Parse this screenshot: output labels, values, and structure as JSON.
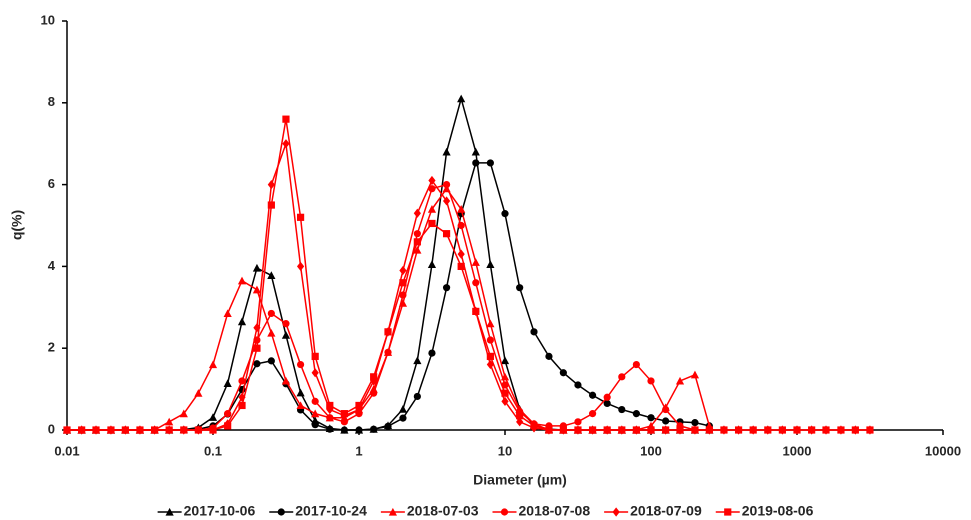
{
  "chart_data": {
    "type": "line",
    "x_label": "Diameter (µm)",
    "y_label": "q(%)",
    "x_scale": "log",
    "xlim": [
      0.01,
      10000
    ],
    "xticks": [
      0.01,
      0.1,
      1,
      10,
      100,
      1000,
      10000
    ],
    "ylim": [
      0,
      10
    ],
    "yticks": [
      0,
      2,
      4,
      6,
      8,
      10
    ],
    "grid": false,
    "legend": "bottom",
    "x": [
      0.01,
      0.0126,
      0.0158,
      0.02,
      0.0251,
      0.0316,
      0.0398,
      0.0501,
      0.0631,
      0.0794,
      0.1,
      0.126,
      0.158,
      0.2,
      0.251,
      0.316,
      0.398,
      0.501,
      0.631,
      0.794,
      1,
      1.26,
      1.58,
      2,
      2.51,
      3.16,
      3.98,
      5.01,
      6.31,
      7.94,
      10,
      12.6,
      15.8,
      20,
      25.1,
      31.6,
      39.8,
      50.1,
      63.1,
      79.4,
      100,
      126,
      158,
      200,
      251,
      316,
      398,
      501,
      631,
      794,
      1000,
      1260,
      1580,
      2000,
      2510,
      3160
    ],
    "series": [
      {
        "name": "2017-10-06",
        "color": "#000000",
        "marker": "triangle",
        "values": [
          0,
          0,
          0,
          0,
          0,
          0,
          0,
          0,
          0.01,
          0.06,
          0.31,
          1.14,
          2.65,
          3.96,
          3.78,
          2.32,
          0.91,
          0.23,
          0.04,
          0,
          0,
          0.02,
          0.11,
          0.51,
          1.7,
          4.05,
          6.8,
          8.1,
          6.8,
          4.05,
          1.7,
          0.51,
          0.11,
          0.02,
          0,
          0,
          0,
          0,
          0,
          0,
          0,
          0,
          0,
          0,
          0,
          null,
          null,
          null,
          null,
          null,
          null,
          null,
          null,
          null,
          null,
          null
        ]
      },
      {
        "name": "2017-10-24",
        "color": "#000000",
        "marker": "circle",
        "values": [
          0,
          0,
          0,
          0,
          0,
          0,
          0,
          0,
          0,
          0.02,
          0.1,
          0.39,
          0.99,
          1.62,
          1.69,
          1.13,
          0.49,
          0.13,
          0.02,
          0,
          0,
          0.02,
          0.09,
          0.29,
          0.82,
          1.88,
          3.48,
          5.29,
          6.53,
          6.53,
          5.29,
          3.48,
          2.4,
          1.8,
          1.4,
          1.1,
          0.85,
          0.65,
          0.5,
          0.4,
          0.3,
          0.22,
          0.2,
          0.18,
          0.1,
          null,
          null,
          null,
          null,
          null,
          null,
          null,
          null,
          null,
          null,
          null
        ]
      },
      {
        "name": "2018-07-03",
        "color": "#ff0000",
        "marker": "triangle",
        "values": [
          0,
          0,
          0,
          0,
          0,
          0,
          0,
          0.2,
          0.4,
          0.9,
          1.6,
          2.85,
          3.65,
          3.43,
          2.37,
          1.2,
          0.6,
          0.4,
          0.3,
          0.3,
          0.5,
          1.0,
          1.9,
          3.1,
          4.4,
          5.4,
          5.9,
          5.4,
          4.1,
          2.6,
          1.3,
          0.5,
          0.15,
          0,
          0,
          0,
          0,
          0,
          0,
          0,
          0.1,
          0.55,
          1.2,
          1.35,
          0.1,
          null,
          null,
          null,
          null,
          null,
          null,
          null,
          null,
          null,
          null,
          null
        ]
      },
      {
        "name": "2018-07-08",
        "color": "#ff0000",
        "marker": "circle",
        "values": [
          0,
          0,
          0,
          0,
          0,
          0,
          0,
          0,
          0,
          0,
          0.05,
          0.4,
          1.2,
          2.2,
          2.85,
          2.6,
          1.6,
          0.7,
          0.3,
          0.2,
          0.4,
          0.9,
          1.9,
          3.3,
          4.8,
          5.9,
          6.0,
          5.0,
          3.6,
          2.2,
          1.1,
          0.45,
          0.15,
          0.1,
          0.1,
          0.2,
          0.4,
          0.8,
          1.3,
          1.6,
          1.2,
          0.5,
          0.1,
          0,
          0,
          null,
          null,
          null,
          null,
          null,
          null,
          null,
          null,
          null,
          null,
          null
        ]
      },
      {
        "name": "2018-07-09",
        "color": "#ff0000",
        "marker": "diamond",
        "values": [
          0,
          0,
          0,
          0,
          0,
          0,
          0,
          0,
          0,
          0,
          0,
          0.15,
          0.8,
          2.5,
          6.0,
          7.0,
          4.0,
          1.4,
          0.5,
          0.35,
          0.5,
          1.2,
          2.4,
          3.9,
          5.3,
          6.1,
          5.6,
          4.3,
          2.9,
          1.6,
          0.7,
          0.2,
          0.05,
          0,
          0,
          0,
          0,
          0,
          0,
          0,
          0,
          0,
          0,
          0,
          0,
          0,
          0,
          0,
          0,
          0,
          0,
          0,
          0,
          0,
          0,
          0
        ]
      },
      {
        "name": "2019-08-06",
        "color": "#ff0000",
        "marker": "square",
        "values": [
          0,
          0,
          0,
          0,
          0,
          0,
          0,
          0,
          0,
          0,
          0,
          0.1,
          0.6,
          2.0,
          5.5,
          7.6,
          5.2,
          1.8,
          0.6,
          0.4,
          0.6,
          1.3,
          2.4,
          3.6,
          4.6,
          5.05,
          4.8,
          4.0,
          2.9,
          1.8,
          0.9,
          0.35,
          0.1,
          0,
          0,
          0,
          0,
          0,
          0,
          0,
          0,
          0,
          0,
          0,
          0,
          0,
          0,
          0,
          0,
          0,
          0,
          0,
          0,
          0,
          0,
          0
        ]
      }
    ]
  }
}
